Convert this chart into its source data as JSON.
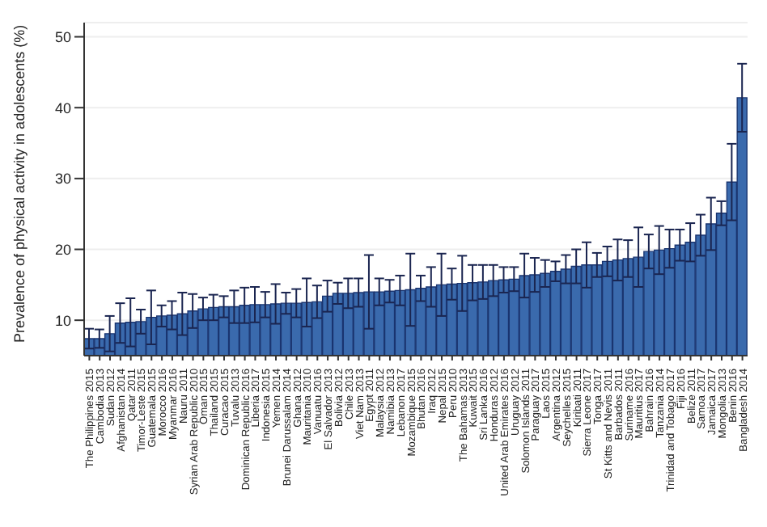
{
  "chart_data": {
    "type": "bar",
    "ylabel": "Prevalence of physical activity in adolescents (%)",
    "categories": [
      "The Philippines 2015",
      "Cambodia 2013",
      "Sudan 2012",
      "Afghanistan 2014",
      "Qatar 2011",
      "Timor-Leste 2015",
      "Guatemala 2015",
      "Morocco 2016",
      "Myanmar 2016",
      "Nauru 2011",
      "Syrian Arab Republic 2010",
      "Oman 2015",
      "Thailand 2015",
      "Curacao 2015",
      "Tuvalu 2013",
      "Dominican Republic 2016",
      "Liberia 2017",
      "Indonesia 2015",
      "Yemen 2014",
      "Brunei Darussalam 2014",
      "Ghana 2012",
      "Mauritania 2010",
      "Vanuatu 2016",
      "El Salvador 2013",
      "Bolivia 2012",
      "Chile 2013",
      "Viet Nam 2013",
      "Egypt 2011",
      "Malaysia 2012",
      "Namibia 2013",
      "Lebanon 2017",
      "Mozambique 2015",
      "Bhutan 2016",
      "Iraq 2012",
      "Nepal 2015",
      "Peru 2010",
      "The Bahamas 2013",
      "Kuwait 2015",
      "Sri Lanka 2016",
      "Honduras 2012",
      "United Arab Emirates 2016",
      "Uruguay 2012",
      "Solomon Islands 2011",
      "Paraguay 2017",
      "Laos 2015",
      "Argentina 2012",
      "Seychelles 2015",
      "Kiribati 2011",
      "Sierra Leone 2017",
      "Tonga 2017",
      "St Kitts and Nevis 2011",
      "Barbados 2011",
      "Suriname 2016",
      "Mauritius 2017",
      "Bahrain 2016",
      "Tanzania 2014",
      "Trinidad and Tobago 2017",
      "Fiji 2016",
      "Belize 2011",
      "Samoa 2017",
      "Jamaica 2017",
      "Mongolia 2013",
      "Benin 2016",
      "Bangladesh 2014"
    ],
    "values": [
      7.4,
      7.4,
      8.1,
      9.6,
      9.7,
      9.8,
      10.4,
      10.6,
      10.7,
      10.9,
      11.3,
      11.6,
      11.8,
      11.9,
      11.9,
      12.1,
      12.2,
      12.2,
      12.3,
      12.4,
      12.4,
      12.5,
      12.6,
      13.4,
      13.8,
      13.8,
      13.9,
      14.0,
      14.0,
      14.1,
      14.2,
      14.3,
      14.5,
      14.7,
      15.0,
      15.1,
      15.2,
      15.3,
      15.4,
      15.6,
      15.7,
      15.8,
      16.3,
      16.4,
      16.6,
      16.9,
      17.2,
      17.6,
      17.8,
      17.8,
      18.3,
      18.5,
      18.7,
      18.9,
      19.7,
      19.9,
      20.1,
      20.6,
      21.0,
      22.0,
      23.6,
      25.1,
      29.5,
      41.4
    ],
    "errors": [
      1.4,
      1.3,
      2.5,
      2.8,
      3.4,
      1.7,
      3.8,
      1.5,
      2.0,
      3.0,
      2.4,
      1.6,
      1.8,
      1.5,
      2.3,
      2.5,
      2.5,
      1.8,
      2.8,
      1.5,
      2.0,
      3.4,
      2.3,
      2.2,
      1.5,
      2.1,
      2.0,
      5.2,
      1.9,
      1.6,
      2.1,
      5.1,
      1.8,
      2.8,
      4.4,
      2.2,
      3.9,
      2.5,
      2.4,
      2.2,
      1.8,
      1.7,
      3.1,
      2.4,
      1.9,
      1.4,
      2.0,
      2.4,
      3.2,
      1.7,
      2.1,
      2.9,
      2.6,
      4.2,
      2.4,
      3.4,
      2.7,
      2.2,
      2.7,
      2.9,
      3.7,
      1.7,
      5.4,
      4.8
    ],
    "color": "#3a6aad",
    "ylim": [
      5,
      52
    ],
    "yticks": [
      10,
      20,
      30,
      40,
      50
    ],
    "grid": "y"
  }
}
